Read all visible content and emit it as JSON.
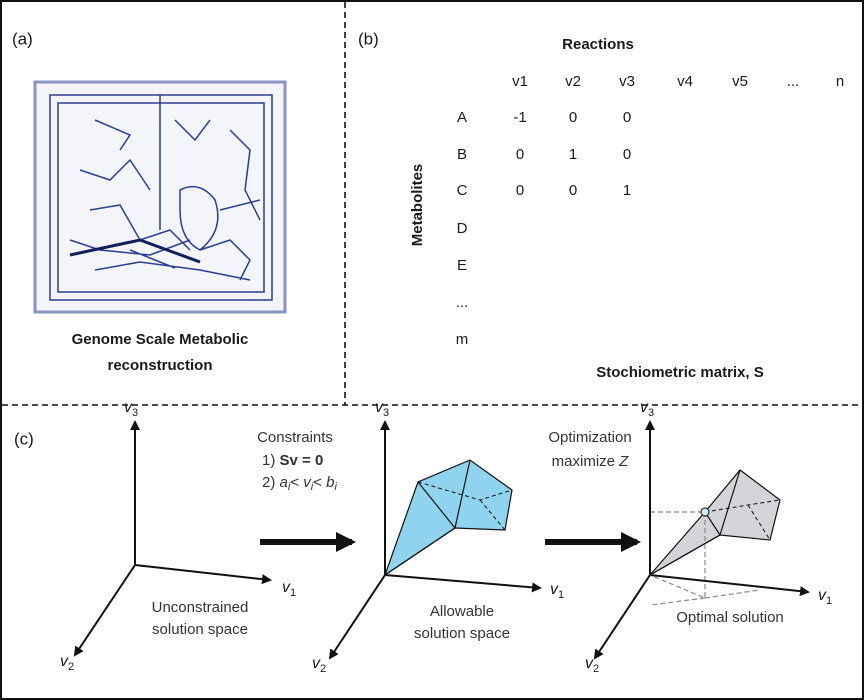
{
  "panel_a": {
    "label": "(a)",
    "caption_lines": [
      "Genome Scale Metabolic",
      "reconstruction"
    ]
  },
  "panel_b": {
    "label": "(b)",
    "columns_title": "Reactions",
    "rows_title": "Metabolites",
    "columns": [
      "v1",
      "v2",
      "v3",
      "v4",
      "v5",
      "...",
      "n"
    ],
    "rows": [
      "A",
      "B",
      "C",
      "D",
      "E",
      "...",
      "m"
    ],
    "matrix": [
      [
        -1,
        0,
        0
      ],
      [
        0,
        1,
        0
      ],
      [
        0,
        0,
        1
      ]
    ],
    "caption": "Stochiometric matrix, S"
  },
  "panel_c": {
    "label": "(c)",
    "axis_labels": {
      "v3": {
        "base": "v",
        "sub": "3"
      },
      "v1": {
        "base": "v",
        "sub": "1"
      },
      "v2": {
        "base": "v",
        "sub": "2"
      }
    },
    "step_1": {
      "title": "Constraints",
      "constraint_1": [
        "1) ",
        "Sv = 0"
      ],
      "constraint_2": [
        "2) ",
        "a",
        "i",
        "< ",
        "v",
        "i",
        "< ",
        "b",
        "i"
      ]
    },
    "step_2": {
      "title": "Optimization",
      "objective": [
        "maximize ",
        "Z"
      ]
    },
    "diagram_captions": [
      [
        "Unconstrained",
        "solution space"
      ],
      [
        "Allowable",
        "solution space"
      ],
      [
        "Optimal solution"
      ]
    ]
  }
}
